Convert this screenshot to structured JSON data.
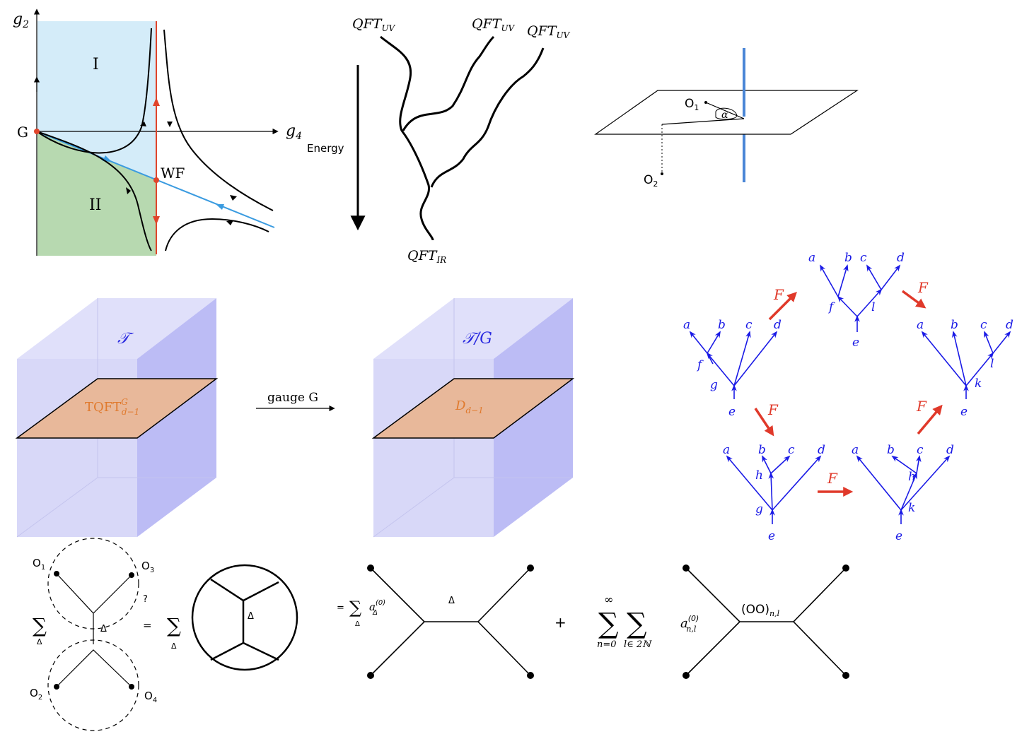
{
  "rg_flow": {
    "axis_y": "g",
    "axis_y_sub": "2",
    "axis_x": "g",
    "axis_x_sub": "4",
    "point_gaussian": "G",
    "point_wf": "WF",
    "region_1": "I",
    "region_2": "II",
    "colors": {
      "region_1": "#d4ecf9",
      "region_2": "#b7d9b0",
      "critical_line": "#e0442a",
      "separatrix": "#3a9be0"
    }
  },
  "qft_flow": {
    "uv_label_1": "QFT",
    "uv_label_2": "QFT",
    "uv_label_3": "QFT",
    "uv_sub": "UV",
    "ir_label": "QFT",
    "ir_sub": "IR",
    "energy_label": "Energy"
  },
  "defect_plane": {
    "o1": "O",
    "o1_sub": "1",
    "o2": "O",
    "o2_sub": "2",
    "angle": "α",
    "colors": {
      "defect_line": "#4a86d6"
    }
  },
  "pentagon": {
    "edge_label": "F",
    "colors": {
      "tree": "#1a1ae6",
      "arrow": "#e0392a"
    },
    "top_tree": {
      "leaves": [
        "a",
        "b",
        "c",
        "d"
      ],
      "internal": [
        "f",
        "l"
      ],
      "root": "e"
    },
    "left_tree": {
      "leaves": [
        "a",
        "b",
        "c",
        "d"
      ],
      "internal": [
        "f",
        "g"
      ],
      "root": "e"
    },
    "right_tree": {
      "leaves": [
        "a",
        "b",
        "c",
        "d"
      ],
      "internal": [
        "l",
        "k"
      ],
      "root": "e"
    },
    "bottom_left_tree": {
      "leaves": [
        "a",
        "b",
        "c",
        "d"
      ],
      "internal": [
        "h",
        "g"
      ],
      "root": "e"
    },
    "bottom_right_tree": {
      "leaves": [
        "a",
        "b",
        "c",
        "d"
      ],
      "internal": [
        "h",
        "k"
      ],
      "root": "e"
    }
  },
  "gauging": {
    "theory": "𝒯",
    "gauged_theory": "𝒯/G",
    "left_slab": "TQFT",
    "left_slab_sup": "G",
    "left_slab_sub": "d−1",
    "right_slab": "D",
    "right_slab_sub": "d−1",
    "arrow_label": "gauge G",
    "colors": {
      "bulk": "#c8c8f5",
      "slab": "#e8b89a",
      "theory_text": "#2a2ae0",
      "slab_text": "#e07a2e"
    }
  },
  "crossing": {
    "sum_symbol": "∑",
    "sum_index": "Δ",
    "delta": "Δ",
    "equals": "=",
    "question": "?",
    "plus": "+",
    "o1": "O",
    "o2": "O",
    "o3": "O",
    "o4": "O",
    "subs": [
      "1",
      "2",
      "3",
      "4"
    ],
    "coef_a0": "a",
    "coef_a0_sup": "(0)",
    "coef_a0_sub": "Δ",
    "inf": "∞",
    "n0": "n=0",
    "l_in": "l∈ 2ℕ",
    "coef_anl": "a",
    "coef_anl_sub": "n,l",
    "double_trace": "(OO)",
    "double_trace_sub": "n,l"
  }
}
